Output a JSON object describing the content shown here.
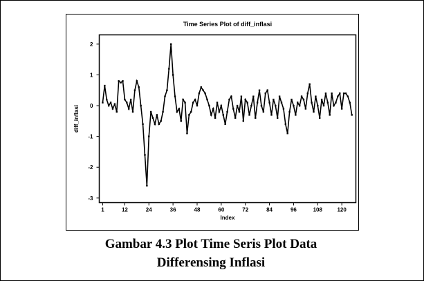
{
  "chart_data": {
    "type": "line",
    "title": "Time Series Plot of diff_inflasi",
    "xlabel": "Index",
    "ylabel": "diff_inflasi",
    "x": [
      1,
      2,
      3,
      4,
      5,
      6,
      7,
      8,
      9,
      10,
      11,
      12,
      13,
      14,
      15,
      16,
      17,
      18,
      19,
      20,
      21,
      22,
      23,
      24,
      25,
      26,
      27,
      28,
      29,
      30,
      31,
      32,
      33,
      34,
      35,
      36,
      37,
      38,
      39,
      40,
      41,
      42,
      43,
      44,
      45,
      46,
      47,
      48,
      49,
      50,
      51,
      52,
      53,
      54,
      55,
      56,
      57,
      58,
      59,
      60,
      61,
      62,
      63,
      64,
      65,
      66,
      67,
      68,
      69,
      70,
      71,
      72,
      73,
      74,
      75,
      76,
      77,
      78,
      79,
      80,
      81,
      82,
      83,
      84,
      85,
      86,
      87,
      88,
      89,
      90,
      91,
      92,
      93,
      94,
      95,
      96,
      97,
      98,
      99,
      100,
      101,
      102,
      103,
      104,
      105,
      106,
      107,
      108,
      109,
      110,
      111,
      112,
      113,
      114,
      115,
      116,
      117,
      118,
      119,
      120,
      121,
      122,
      123,
      124,
      125
    ],
    "series": [
      {
        "name": "diff_inflasi",
        "color": "#000000",
        "values": [
          0.1,
          0.65,
          0.2,
          0.0,
          0.1,
          -0.1,
          0.05,
          -0.2,
          0.8,
          0.75,
          0.8,
          0.2,
          0.1,
          -0.1,
          0.2,
          -0.2,
          0.5,
          0.8,
          0.6,
          0.0,
          -0.6,
          -1.6,
          -2.6,
          -1.0,
          -0.2,
          -0.4,
          -0.6,
          -0.3,
          -0.6,
          -0.5,
          -0.2,
          0.3,
          0.5,
          1.2,
          2.0,
          1.0,
          0.3,
          -0.2,
          -0.1,
          -0.5,
          0.2,
          0.1,
          -0.9,
          -0.3,
          -0.2,
          0.1,
          0.2,
          0.0,
          0.4,
          0.6,
          0.5,
          0.4,
          0.2,
          0.0,
          -0.3,
          -0.1,
          -0.4,
          0.1,
          -0.2,
          0.0,
          -0.3,
          -0.6,
          -0.2,
          0.2,
          0.3,
          -0.1,
          -0.4,
          0.0,
          -0.2,
          0.3,
          -0.5,
          0.2,
          0.1,
          -0.3,
          0.0,
          0.3,
          -0.4,
          0.1,
          0.5,
          0.0,
          -0.2,
          0.4,
          0.5,
          0.1,
          -0.3,
          0.2,
          0.0,
          -0.4,
          0.3,
          0.1,
          -0.1,
          -0.6,
          -0.9,
          -0.2,
          0.2,
          0.0,
          -0.3,
          0.1,
          0.0,
          0.3,
          0.2,
          -0.1,
          0.4,
          0.7,
          0.1,
          -0.2,
          0.3,
          0.0,
          -0.4,
          0.2,
          0.0,
          0.4,
          0.1,
          -0.3,
          0.4,
          0.0,
          0.1,
          0.3,
          0.4,
          -0.1,
          0.4,
          0.4,
          0.3,
          0.1,
          -0.3
        ]
      }
    ],
    "xlim": [
      -0.7,
      127
    ],
    "xticks": [
      1,
      12,
      24,
      36,
      48,
      60,
      72,
      84,
      96,
      108,
      120
    ],
    "ylim": [
      -3.15,
      2.3
    ],
    "yticks": [
      -3,
      -2,
      -1,
      0,
      1,
      2
    ],
    "caption": [
      "Gambar 4.3 Plot Time Seris Plot Data",
      "Differensing Inflasi"
    ]
  }
}
